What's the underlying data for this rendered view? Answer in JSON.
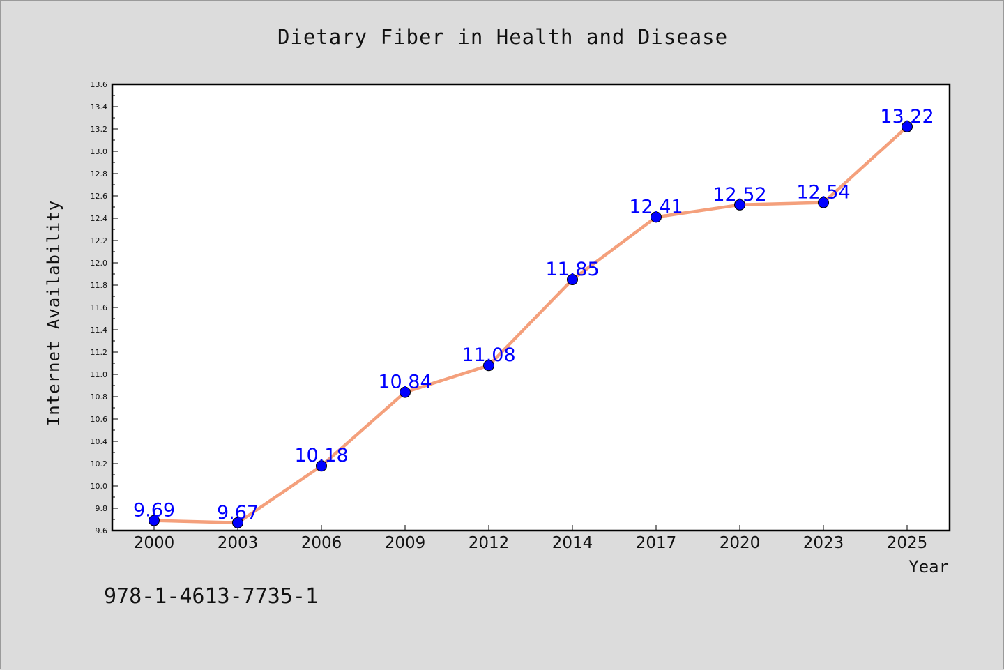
{
  "chart_data": {
    "type": "line",
    "title": "Dietary Fiber in Health and Disease",
    "xlabel": "Year",
    "ylabel": "Internet Availability",
    "categories": [
      "2000",
      "2003",
      "2006",
      "2009",
      "2012",
      "2014",
      "2017",
      "2020",
      "2023",
      "2025"
    ],
    "series": [
      {
        "values": [
          9.69,
          9.67,
          10.18,
          10.84,
          11.08,
          11.85,
          12.41,
          12.52,
          12.54,
          13.22
        ],
        "data_labels": [
          "9.69",
          "9.67",
          "10.18",
          "10.84",
          "11.08",
          "11.85",
          "12.41",
          "12.52",
          "12.54",
          "13.22"
        ],
        "line_color": "#f4a07c",
        "marker_color": "#0000ff"
      }
    ],
    "ylim": [
      9.6,
      13.6
    ],
    "yticks": [
      "9.6",
      "9.8",
      "10.0",
      "10.2",
      "10.4",
      "10.6",
      "10.8",
      "11.0",
      "11.2",
      "11.4",
      "11.6",
      "11.8",
      "12.0",
      "12.2",
      "12.4",
      "12.6",
      "12.8",
      "13.0",
      "13.2",
      "13.4",
      "13.6"
    ],
    "grid": false,
    "label_color": "#0000ff"
  },
  "footnote": "978-1-4613-7735-1"
}
